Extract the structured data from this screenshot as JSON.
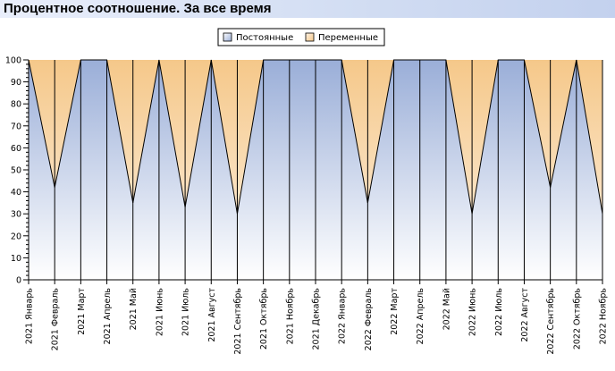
{
  "title": "Процентное соотношение. За все время",
  "colors": {
    "constant_top": "#9aaed8",
    "constant_bottom": "#ffffff",
    "variable_top": "#f5c88a",
    "variable_bottom": "#fdf1e2",
    "title_bar": "#d3def3"
  },
  "chart_data": {
    "type": "area",
    "stacked": "percent",
    "title": "Процентное соотношение. За все время",
    "xlabel": "",
    "ylabel": "",
    "ylim": [
      0,
      100
    ],
    "yticks": [
      0,
      10,
      20,
      30,
      40,
      50,
      60,
      70,
      80,
      90,
      100
    ],
    "grid": false,
    "legend_position": "top-center",
    "categories": [
      "2021 Январь",
      "2021 Февраль",
      "2021 Март",
      "2021 Апрель",
      "2021 Май",
      "2021 Июнь",
      "2021 Июль",
      "2021 Август",
      "2021 Сентябрь",
      "2021 Октябрь",
      "2021 Ноябрь",
      "2021 Декабрь",
      "2022 Январь",
      "2022 Февраль",
      "2022 Март",
      "2022 Апрель",
      "2022 Май",
      "2022 Июнь",
      "2022 Июль",
      "2022 Август",
      "2022 Сентябрь",
      "2022 Октябрь",
      "2022 Ноябрь"
    ],
    "series": [
      {
        "name": "Постоянные",
        "values": [
          100,
          42,
          100,
          100,
          35,
          100,
          33,
          100,
          30,
          100,
          100,
          100,
          100,
          35,
          100,
          100,
          100,
          30,
          100,
          100,
          42,
          100,
          30
        ]
      },
      {
        "name": "Переменные",
        "values": [
          0,
          58,
          0,
          0,
          65,
          0,
          67,
          0,
          70,
          0,
          0,
          0,
          0,
          65,
          0,
          0,
          0,
          70,
          0,
          0,
          58,
          0,
          70
        ]
      }
    ]
  }
}
